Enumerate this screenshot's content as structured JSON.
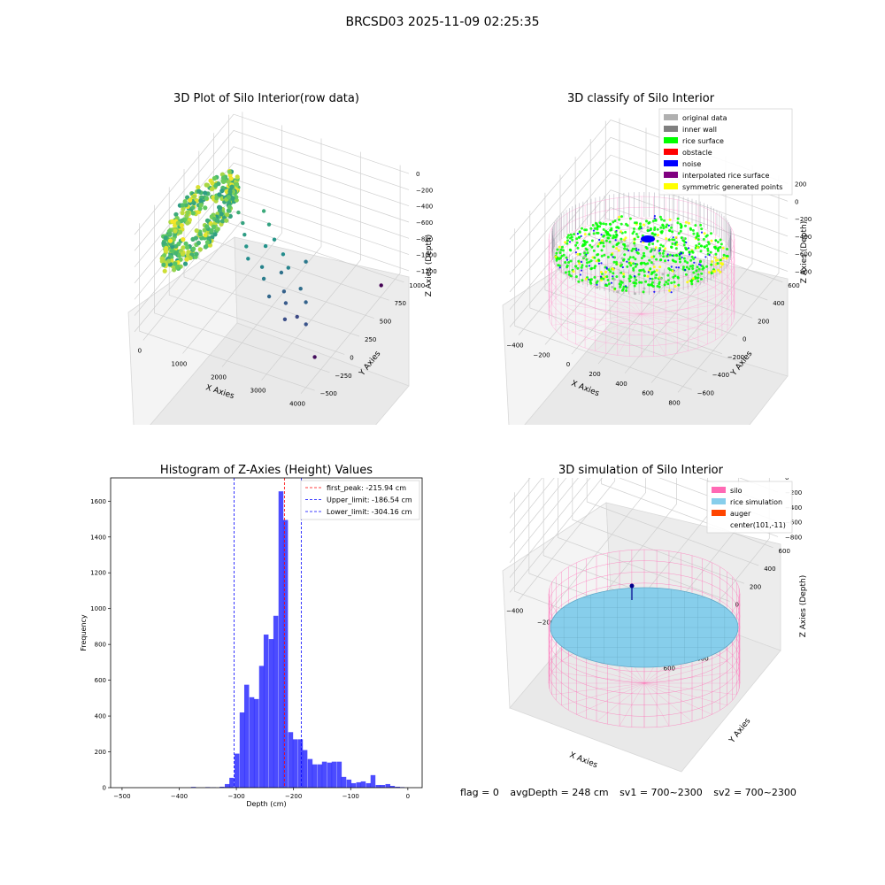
{
  "suptitle": "BRCSD03 2025-11-09 02:25:35",
  "footer": {
    "flag": "flag = 0",
    "avg_depth": "avgDepth = 248 cm",
    "sv1": "sv1 = 700~2300",
    "sv2": "sv2 = 700~2300"
  },
  "chart_data": [
    {
      "type": "scatter",
      "projection": "3d",
      "title": "3D Plot of Silo Interior(row data)",
      "xlabel": "X Axies",
      "ylabel": "Y Axies",
      "zlabel": "Z Axies (Depth)",
      "x_ticks": [
        "0",
        "1000",
        "2000",
        "3000",
        "4000"
      ],
      "y_ticks": [
        "−500",
        "−250",
        "0",
        "250",
        "500",
        "750",
        "1000"
      ],
      "z_ticks": [
        "−1200",
        "−1000",
        "−800",
        "−600",
        "−400",
        "−200",
        "0"
      ],
      "xlim": [
        -300,
        4200
      ],
      "ylim": [
        -600,
        1100
      ],
      "zlim": [
        -1300,
        50
      ],
      "colormap": "viridis",
      "cluster": {
        "x_range": [
          -300,
          700
        ],
        "y_range": [
          -600,
          700
        ],
        "z_range": [
          -600,
          -100
        ]
      },
      "outliers": [
        {
          "x": 700,
          "y": 450,
          "z": -450
        },
        {
          "x": 900,
          "y": 400,
          "z": -520
        },
        {
          "x": 1100,
          "y": 300,
          "z": -560
        },
        {
          "x": 1300,
          "y": 200,
          "z": -600
        },
        {
          "x": 1500,
          "y": 100,
          "z": -650
        },
        {
          "x": 1700,
          "y": 300,
          "z": -620
        },
        {
          "x": 1900,
          "y": 100,
          "z": -700
        },
        {
          "x": 2100,
          "y": 0,
          "z": -740
        },
        {
          "x": 2300,
          "y": 200,
          "z": -800
        },
        {
          "x": 2400,
          "y": -100,
          "z": -850
        },
        {
          "x": 2600,
          "y": 50,
          "z": -880
        },
        {
          "x": 2800,
          "y": -50,
          "z": -920
        },
        {
          "x": 3000,
          "y": -200,
          "z": -980
        },
        {
          "x": 3200,
          "y": -100,
          "z": -1000
        },
        {
          "x": 1200,
          "y": 600,
          "z": -480
        },
        {
          "x": 1500,
          "y": 500,
          "z": -530
        },
        {
          "x": 1800,
          "y": 400,
          "z": -600
        },
        {
          "x": 2200,
          "y": 300,
          "z": -650
        },
        {
          "x": 2500,
          "y": 200,
          "z": -700
        },
        {
          "x": 2700,
          "y": 400,
          "z": -760
        },
        {
          "x": 3000,
          "y": 100,
          "z": -820
        },
        {
          "x": 3300,
          "y": 0,
          "z": -870
        },
        {
          "x": 3600,
          "y": -200,
          "z": -950
        },
        {
          "x": 4000,
          "y": -300,
          "z": -1250
        },
        {
          "x": 4100,
          "y": 900,
          "z": -1300
        }
      ]
    },
    {
      "type": "scatter",
      "projection": "3d",
      "title": "3D classify of Silo Interior",
      "xlabel": "X Axies",
      "ylabel": "Y Axies",
      "zlabel": "Z Axies (Depth)",
      "x_ticks": [
        "−400",
        "−200",
        "0",
        "200",
        "400",
        "600",
        "800"
      ],
      "y_ticks": [
        "−600",
        "−400",
        "−200",
        "0",
        "200",
        "400",
        "600"
      ],
      "z_ticks": [
        "−800",
        "−600",
        "−400",
        "−200",
        "0",
        "200"
      ],
      "xlim": [
        -500,
        800
      ],
      "ylim": [
        -650,
        650
      ],
      "zlim": [
        -900,
        250
      ],
      "silo_radius": 560,
      "rice_surface_depth": -216,
      "legend": [
        {
          "label": "original data",
          "color": "#b0b0b0"
        },
        {
          "label": "inner wall",
          "color": "#808080"
        },
        {
          "label": "rice surface",
          "color": "#00ff00"
        },
        {
          "label": "obstacle",
          "color": "#ff0000"
        },
        {
          "label": "noise",
          "color": "#0000ff"
        },
        {
          "label": "interpolated rice surface",
          "color": "#800080"
        },
        {
          "label": "symmetric generated points",
          "color": "#ffff00"
        }
      ],
      "legend_position": "top-right"
    },
    {
      "type": "bar",
      "title": "Histogram of Z-Axies (Height) Values",
      "xlabel": "Depth (cm)",
      "ylabel": "Frequency",
      "xlim": [
        -520,
        25
      ],
      "ylim": [
        0,
        1730
      ],
      "x_ticks": [
        -500,
        -400,
        -300,
        -200,
        -100,
        0
      ],
      "y_ticks": [
        0,
        200,
        400,
        600,
        800,
        1000,
        1200,
        1400,
        1600
      ],
      "bar_color": "#0000ff",
      "bin_width": 8.5,
      "bins": [
        {
          "x": -375,
          "y": 4
        },
        {
          "x": -350,
          "y": 3
        },
        {
          "x": -340,
          "y": 2
        },
        {
          "x": -325,
          "y": 5
        },
        {
          "x": -316,
          "y": 20
        },
        {
          "x": -308,
          "y": 55
        },
        {
          "x": -299,
          "y": 190
        },
        {
          "x": -290,
          "y": 420
        },
        {
          "x": -282,
          "y": 575
        },
        {
          "x": -273,
          "y": 505
        },
        {
          "x": -265,
          "y": 495
        },
        {
          "x": -256,
          "y": 680
        },
        {
          "x": -248,
          "y": 855
        },
        {
          "x": -239,
          "y": 830
        },
        {
          "x": -231,
          "y": 960
        },
        {
          "x": -222,
          "y": 1655
        },
        {
          "x": -214,
          "y": 1495
        },
        {
          "x": -205,
          "y": 310
        },
        {
          "x": -197,
          "y": 270
        },
        {
          "x": -188,
          "y": 270
        },
        {
          "x": -180,
          "y": 210
        },
        {
          "x": -171,
          "y": 160
        },
        {
          "x": -163,
          "y": 130
        },
        {
          "x": -154,
          "y": 130
        },
        {
          "x": -146,
          "y": 145
        },
        {
          "x": -137,
          "y": 140
        },
        {
          "x": -129,
          "y": 145
        },
        {
          "x": -120,
          "y": 145
        },
        {
          "x": -112,
          "y": 60
        },
        {
          "x": -103,
          "y": 45
        },
        {
          "x": -95,
          "y": 25
        },
        {
          "x": -86,
          "y": 30
        },
        {
          "x": -78,
          "y": 35
        },
        {
          "x": -69,
          "y": 25
        },
        {
          "x": -61,
          "y": 70
        },
        {
          "x": -52,
          "y": 15
        },
        {
          "x": -44,
          "y": 15
        },
        {
          "x": -35,
          "y": 20
        },
        {
          "x": -27,
          "y": 10
        },
        {
          "x": -18,
          "y": 5
        },
        {
          "x": -10,
          "y": 3
        }
      ],
      "lines": [
        {
          "label": "first_peak: -215.94 cm",
          "x": -215.94,
          "color": "#ff0000"
        },
        {
          "label": "Upper_limit: -186.54 cm",
          "x": -186.54,
          "color": "#0000ff"
        },
        {
          "label": "Lower_limit: -304.16 cm",
          "x": -304.16,
          "color": "#0000ff"
        }
      ],
      "legend_position": "top-right"
    },
    {
      "type": "surface",
      "projection": "3d",
      "title": "3D simulation of Silo Interior",
      "xlabel": "X Axies",
      "ylabel": "Y Axies",
      "zlabel": "Z Axies (Depth)",
      "x_ticks": [
        "−400",
        "−200",
        "0",
        "200",
        "400",
        "600"
      ],
      "y_ticks": [
        "−600",
        "−400",
        "−200",
        "0",
        "200",
        "400",
        "600"
      ],
      "z_ticks": [
        "−800",
        "−600",
        "−400",
        "−200",
        "0",
        "200",
        "400"
      ],
      "xlim": [
        -500,
        700
      ],
      "ylim": [
        -650,
        650
      ],
      "zlim": [
        -900,
        450
      ],
      "legend": [
        {
          "label": "silo",
          "color": "#ff69b4"
        },
        {
          "label": "rice simulation",
          "color": "#87ceeb"
        },
        {
          "label": "auger",
          "color": "#ff4500"
        },
        {
          "label": "center(101,-11)",
          "color": ""
        }
      ],
      "legend_position": "top-right"
    }
  ]
}
